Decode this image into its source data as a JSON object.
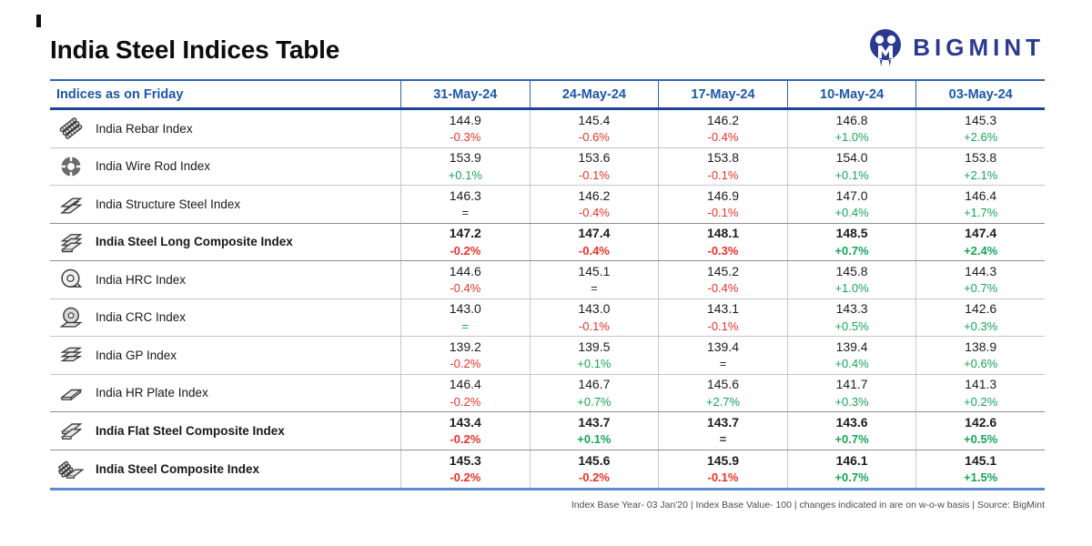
{
  "page": {
    "title": "India Steel Indices Table",
    "footer": "Index Base Year- 03 Jan'20 | Index Base Value- 100 | changes indicated in are on w-o-w basis | Source: BigMint"
  },
  "logo": {
    "text": "BIGMINT",
    "color": "#2b3a90"
  },
  "colors": {
    "header_blue_text": "#1b57a8",
    "header_top_border": "#2e63b5",
    "header_bottom_border": "#1c4596",
    "table_bottom_border": "#5c8bd2",
    "positive": "#17a558",
    "negative": "#ee3126",
    "neutral": "#2b2b2b"
  },
  "chart_data": {
    "type": "table",
    "title": "India Steel Indices Table",
    "columns": [
      "Indices as on Friday",
      "31-May-24",
      "24-May-24",
      "17-May-24",
      "10-May-24",
      "03-May-24"
    ],
    "rows": [
      {
        "name": "India Rebar Index",
        "icon": "rebar-icon",
        "bold": false,
        "cells": [
          {
            "value": "144.9",
            "change": "-0.3%",
            "tone": "red"
          },
          {
            "value": "145.4",
            "change": "-0.6%",
            "tone": "red"
          },
          {
            "value": "146.2",
            "change": "-0.4%",
            "tone": "red"
          },
          {
            "value": "146.8",
            "change": "+1.0%",
            "tone": "green"
          },
          {
            "value": "145.3",
            "change": "+2.6%",
            "tone": "green"
          }
        ]
      },
      {
        "name": "India Wire Rod Index",
        "icon": "wire-rod-icon",
        "bold": false,
        "cells": [
          {
            "value": "153.9",
            "change": "+0.1%",
            "tone": "green"
          },
          {
            "value": "153.6",
            "change": "-0.1%",
            "tone": "red"
          },
          {
            "value": "153.8",
            "change": "-0.1%",
            "tone": "red"
          },
          {
            "value": "154.0",
            "change": "+0.1%",
            "tone": "green"
          },
          {
            "value": "153.8",
            "change": "+2.1%",
            "tone": "green"
          }
        ]
      },
      {
        "name": "India Structure Steel Index",
        "icon": "structure-steel-icon",
        "bold": false,
        "cells": [
          {
            "value": "146.3",
            "change": "=",
            "tone": "dark"
          },
          {
            "value": "146.2",
            "change": "-0.4%",
            "tone": "red"
          },
          {
            "value": "146.9",
            "change": "-0.1%",
            "tone": "red"
          },
          {
            "value": "147.0",
            "change": "+0.4%",
            "tone": "green"
          },
          {
            "value": "146.4",
            "change": "+1.7%",
            "tone": "green"
          }
        ]
      },
      {
        "name": "India Steel Long Composite Index",
        "icon": "steel-long-composite-icon",
        "bold": true,
        "cells": [
          {
            "value": "147.2",
            "change": "-0.2%",
            "tone": "red"
          },
          {
            "value": "147.4",
            "change": "-0.4%",
            "tone": "red"
          },
          {
            "value": "148.1",
            "change": "-0.3%",
            "tone": "red"
          },
          {
            "value": "148.5",
            "change": "+0.7%",
            "tone": "green"
          },
          {
            "value": "147.4",
            "change": "+2.4%",
            "tone": "green"
          }
        ]
      },
      {
        "name": "India HRC Index",
        "icon": "hrc-coil-icon",
        "bold": false,
        "cells": [
          {
            "value": "144.6",
            "change": "-0.4%",
            "tone": "red"
          },
          {
            "value": "145.1",
            "change": "=",
            "tone": "dark"
          },
          {
            "value": "145.2",
            "change": "-0.4%",
            "tone": "red"
          },
          {
            "value": "145.8",
            "change": "+1.0%",
            "tone": "green"
          },
          {
            "value": "144.3",
            "change": "+0.7%",
            "tone": "green"
          }
        ]
      },
      {
        "name": "India CRC Index",
        "icon": "crc-coil-icon",
        "bold": false,
        "cells": [
          {
            "value": "143.0",
            "change": "=",
            "tone": "green"
          },
          {
            "value": "143.0",
            "change": "-0.1%",
            "tone": "red"
          },
          {
            "value": "143.1",
            "change": "-0.1%",
            "tone": "red"
          },
          {
            "value": "143.3",
            "change": "+0.5%",
            "tone": "green"
          },
          {
            "value": "142.6",
            "change": "+0.3%",
            "tone": "green"
          }
        ]
      },
      {
        "name": "India GP Index",
        "icon": "gp-sheets-icon",
        "bold": false,
        "cells": [
          {
            "value": "139.2",
            "change": "-0.2%",
            "tone": "red"
          },
          {
            "value": "139.5",
            "change": "+0.1%",
            "tone": "green"
          },
          {
            "value": "139.4",
            "change": "=",
            "tone": "dark"
          },
          {
            "value": "139.4",
            "change": "+0.4%",
            "tone": "green"
          },
          {
            "value": "138.9",
            "change": "+0.6%",
            "tone": "green"
          }
        ]
      },
      {
        "name": "India HR Plate Index",
        "icon": "hr-plate-icon",
        "bold": false,
        "cells": [
          {
            "value": "146.4",
            "change": "-0.2%",
            "tone": "red"
          },
          {
            "value": "146.7",
            "change": "+0.7%",
            "tone": "green"
          },
          {
            "value": "145.6",
            "change": "+2.7%",
            "tone": "green"
          },
          {
            "value": "141.7",
            "change": "+0.3%",
            "tone": "green"
          },
          {
            "value": "141.3",
            "change": "+0.2%",
            "tone": "green"
          }
        ]
      },
      {
        "name": "India Flat Steel Composite Index",
        "icon": "flat-steel-composite-icon",
        "bold": true,
        "cells": [
          {
            "value": "143.4",
            "change": "-0.2%",
            "tone": "red"
          },
          {
            "value": "143.7",
            "change": "+0.1%",
            "tone": "green"
          },
          {
            "value": "143.7",
            "change": "=",
            "tone": "dark"
          },
          {
            "value": "143.6",
            "change": "+0.7%",
            "tone": "green"
          },
          {
            "value": "142.6",
            "change": "+0.5%",
            "tone": "green"
          }
        ]
      },
      {
        "name": "India Steel Composite Index",
        "icon": "steel-composite-icon",
        "bold": true,
        "cells": [
          {
            "value": "145.3",
            "change": "-0.2%",
            "tone": "red"
          },
          {
            "value": "145.6",
            "change": "-0.2%",
            "tone": "red"
          },
          {
            "value": "145.9",
            "change": "-0.1%",
            "tone": "red"
          },
          {
            "value": "146.1",
            "change": "+0.7%",
            "tone": "green"
          },
          {
            "value": "145.1",
            "change": "+1.5%",
            "tone": "green"
          }
        ]
      }
    ]
  }
}
